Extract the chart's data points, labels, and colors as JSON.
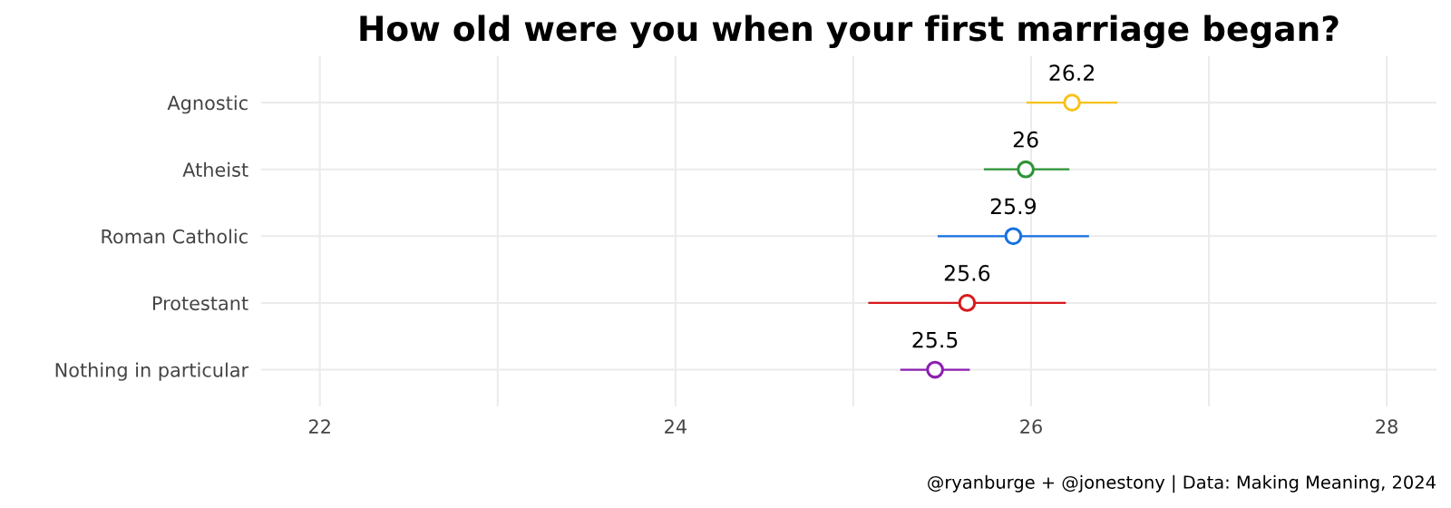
{
  "chart_data": {
    "type": "scatter",
    "orientation": "horizontal",
    "title": "How old were you when your first marriage began?",
    "categories": [
      "Agnostic",
      "Atheist",
      "Roman Catholic",
      "Protestant",
      "Nothing in particular"
    ],
    "values": [
      26.23,
      25.97,
      25.9,
      25.64,
      25.46
    ],
    "value_labels": [
      "26.2",
      "26",
      "25.9",
      "25.6",
      "25.5"
    ],
    "errors": [
      [
        25.98,
        26.48
      ],
      [
        25.74,
        26.21
      ],
      [
        25.48,
        26.32
      ],
      [
        25.09,
        26.19
      ],
      [
        25.27,
        25.65
      ]
    ],
    "colors": [
      "#f7c21b",
      "#2e9437",
      "#1570e0",
      "#d7191c",
      "#8c1fb0"
    ],
    "xlim": [
      21.67,
      28.28
    ],
    "xticks": [
      22,
      {
        "value": 23,
        "label": null
      },
      24,
      {
        "value": 25,
        "label": null
      },
      26,
      {
        "value": 27,
        "label": null
      },
      28
    ],
    "grid": true,
    "marker": "circle",
    "annotations": [
      "@ryanburge + @jonestony | Data: Making Meaning, 2024"
    ]
  }
}
